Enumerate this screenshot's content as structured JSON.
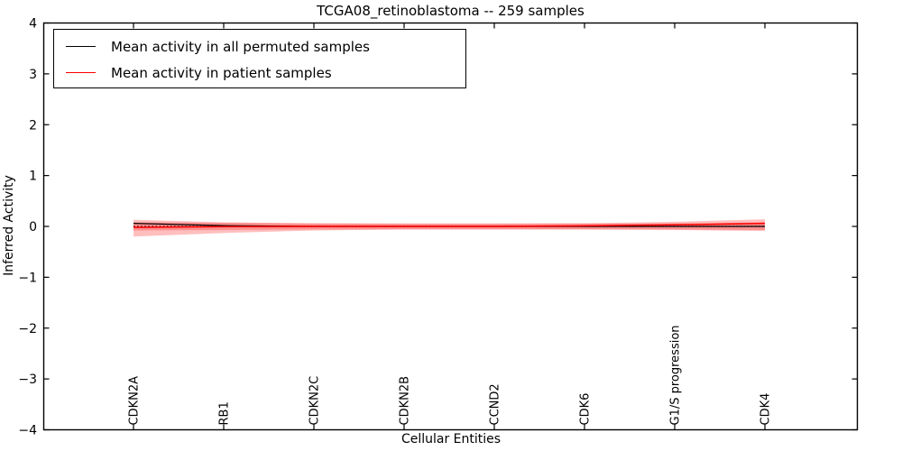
{
  "figure": {
    "title": "TCGA08_retinoblastoma -- 259 samples",
    "xlabel": "Cellular Entities",
    "ylabel": "Inferred Activity"
  },
  "legend": {
    "items": [
      {
        "label": "Mean activity in all permuted samples",
        "color": "#000000"
      },
      {
        "label": "Mean activity in patient samples",
        "color": "#ff0000"
      }
    ]
  },
  "chart_data": {
    "type": "line",
    "title": "TCGA08_retinoblastoma -- 259 samples",
    "xlabel": "Cellular Entities",
    "ylabel": "Inferred Activity",
    "ylim": [
      -4,
      4
    ],
    "grid": false,
    "legend_position": "upper left",
    "yticks": [
      {
        "v": 4,
        "label": "4"
      },
      {
        "v": 3,
        "label": "3"
      },
      {
        "v": 2,
        "label": "2"
      },
      {
        "v": 1,
        "label": "1"
      },
      {
        "v": 0,
        "label": "0"
      },
      {
        "v": -1,
        "label": "−1"
      },
      {
        "v": -2,
        "label": "−2"
      },
      {
        "v": -3,
        "label": "−3"
      },
      {
        "v": -4,
        "label": "−4"
      }
    ],
    "categories": [
      "CDKN2A",
      "RB1",
      "CDKN2C",
      "CDKN2B",
      "CCND2",
      "CDK6",
      "G1/S progression",
      "CDK4"
    ],
    "series": [
      {
        "name": "Mean activity in all permuted samples",
        "color": "#000000",
        "style": "solid",
        "width": 1.2,
        "values": [
          0.06,
          0.015,
          0.0,
          0.0,
          0.0,
          0.0,
          0.0,
          0.0
        ]
      },
      {
        "name": "zero reference",
        "color": "#000000",
        "style": "dotted",
        "width": 1.2,
        "values": [
          0.0,
          0.0,
          0.0,
          0.0,
          0.0,
          0.0,
          0.0,
          0.0
        ]
      },
      {
        "name": "Mean activity in patient samples",
        "color": "#ff0000",
        "style": "solid",
        "width": 1.5,
        "values": [
          -0.02,
          -0.005,
          0.0,
          0.0,
          0.0,
          0.01,
          0.03,
          0.06
        ]
      }
    ],
    "bands": [
      {
        "name": "patient-activity-band",
        "color": "rgba(255,0,0,0.25)",
        "upper": [
          0.13,
          0.08,
          0.06,
          0.05,
          0.05,
          0.06,
          0.09,
          0.14
        ],
        "lower": [
          -0.2,
          -0.13,
          -0.08,
          -0.06,
          -0.06,
          -0.06,
          -0.07,
          -0.09
        ]
      },
      {
        "name": "permuted-activity-band",
        "color": "rgba(255,0,0,0.25)",
        "upper": [
          0.08,
          0.07,
          0.06,
          0.06,
          0.06,
          0.06,
          0.06,
          0.08
        ],
        "lower": [
          -0.08,
          -0.07,
          -0.06,
          -0.06,
          -0.06,
          -0.06,
          -0.06,
          -0.07
        ]
      }
    ]
  }
}
